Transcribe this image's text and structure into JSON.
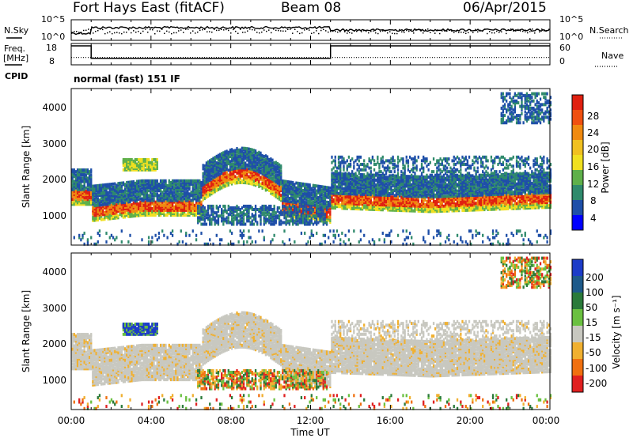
{
  "header": {
    "radar": "Fort Hays East (fitACF)",
    "beam": "Beam 08",
    "date": "06/Apr/2015"
  },
  "top_panels": {
    "nsky_label": "N.Sky",
    "nsky_ticks": [
      "10^5",
      "10^0"
    ],
    "nsearch_label": "N.Search",
    "nsearch_ticks": [
      "10^5",
      "10^0"
    ],
    "freq_label_1": "Freq.",
    "freq_label_2": "[MHz]",
    "freq_ticks": [
      "18",
      "8"
    ],
    "nave_label": "Nave",
    "nave_ticks": [
      "60",
      "0"
    ],
    "cpid_label": "CPID",
    "cpid_text": "normal (fast) 151 IF"
  },
  "chart_data": [
    {
      "type": "line",
      "title": "",
      "series": [
        {
          "name": "Freq.",
          "x_hours": [
            0,
            1.0,
            1.0,
            13.0,
            13.0,
            24
          ],
          "values": [
            18,
            18,
            10.5,
            10.5,
            18,
            18
          ]
        },
        {
          "name": "Nave",
          "x_hours": [
            0,
            1.0,
            1.0,
            24
          ],
          "values": [
            20,
            20,
            20,
            20
          ]
        }
      ]
    },
    {
      "type": "heatmap",
      "quantity": "Power",
      "ylabel": "Slant Range [km]",
      "colorbar_label": "Power [dB]",
      "colorbar_ticks": [
        "28",
        "24",
        "20",
        "16",
        "12",
        "8",
        "4"
      ],
      "y_ticks": [
        "4000",
        "3000",
        "2000",
        "1000"
      ],
      "ylim": [
        180,
        4500
      ],
      "xlim_hours": [
        0,
        24
      ],
      "colors": [
        "#0000ff",
        "#1e4fa8",
        "#2f8a6c",
        "#5fb04a",
        "#f0e020",
        "#f08a10",
        "#e02010"
      ]
    },
    {
      "type": "heatmap",
      "quantity": "Velocity",
      "ylabel": "Slant Range [km]",
      "colorbar_label": "Velocity [m s⁻¹]",
      "colorbar_ticks": [
        "200",
        "100",
        "50",
        "15",
        "-15",
        "-50",
        "-100",
        "-200"
      ],
      "y_ticks": [
        "4000",
        "3000",
        "2000",
        "1000"
      ],
      "ylim": [
        180,
        4500
      ],
      "xlim_hours": [
        0,
        24
      ],
      "colors": [
        "#1c3cc8",
        "#2a7a3a",
        "#6ac040",
        "#c8c8c0",
        "#f0b030",
        "#f07010",
        "#e02020"
      ]
    }
  ],
  "x_axis": {
    "ticks": [
      "00:00",
      "04:00",
      "08:00",
      "12:00",
      "16:00",
      "20:00",
      "00:00"
    ],
    "label": "Time UT"
  }
}
